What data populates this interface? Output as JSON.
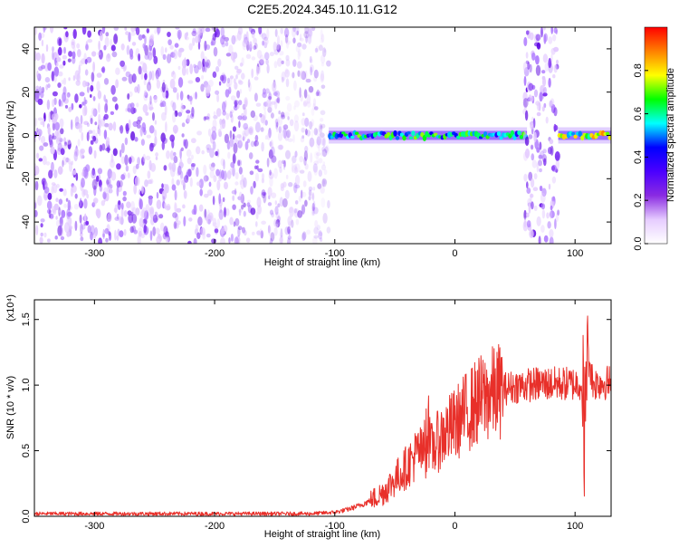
{
  "title": "C2E5.2024.345.10.11.G12",
  "chart_data": [
    {
      "type": "heatmap",
      "title": "C2E5.2024.345.10.11.G12",
      "xlabel": "Height of straight line (km)",
      "ylabel": "Frequency (Hz)",
      "xlim": [
        -350,
        130
      ],
      "ylim": [
        -50,
        50
      ],
      "xticks": [
        -300,
        -200,
        -100,
        0,
        100
      ],
      "xtick_labels": [
        "-300",
        "-200",
        "-100",
        "0",
        "100"
      ],
      "yticks": [
        -40,
        -20,
        0,
        20,
        40
      ],
      "ytick_labels": [
        "-40",
        "-20",
        "0",
        "20",
        "40"
      ],
      "colorbar": {
        "label": "Normalized spectral amplitude",
        "range": [
          0,
          1
        ],
        "ticks": [
          0.0,
          0.2,
          0.4,
          0.6,
          0.8
        ],
        "tick_labels": [
          "0.0",
          "0.2",
          "0.4",
          "0.6",
          "0.8"
        ],
        "colormap": [
          "#ffffff",
          "#e6ccff",
          "#8a2be2",
          "#4b00ff",
          "#0000ff",
          "#00ffff",
          "#00ff00",
          "#ffff00",
          "#ff8000",
          "#ff0000"
        ]
      },
      "regions": [
        {
          "x_range": [
            -350,
            -105
          ],
          "y_range": [
            -50,
            50
          ],
          "amplitude": 0.1
        },
        {
          "x_range": [
            -105,
            60
          ],
          "y_range": [
            -3,
            3
          ],
          "amplitude": 0.7
        },
        {
          "x_range": [
            58,
            86
          ],
          "y_range": [
            -50,
            50
          ],
          "amplitude": 0.12
        },
        {
          "x_range": [
            86,
            130
          ],
          "y_range": [
            -3,
            3
          ],
          "amplitude": 0.85
        }
      ],
      "grid": false
    },
    {
      "type": "line",
      "xlabel": "Height of straight line (km)",
      "ylabel": "SNR (10 * v/v)",
      "yscale_note": "(x10⁴)",
      "xlim": [
        -350,
        130
      ],
      "ylim": [
        0,
        1.65
      ],
      "xticks": [
        -300,
        -200,
        -100,
        0,
        100
      ],
      "xtick_labels": [
        "-300",
        "-200",
        "-100",
        "0",
        "100"
      ],
      "yticks": [
        0.0,
        0.5,
        1.0,
        1.5
      ],
      "ytick_labels": [
        "0.0",
        "0.5",
        "1.0",
        "1.5"
      ],
      "color": "#e8302a",
      "series": [
        {
          "x": [
            -350,
            -300,
            -250,
            -200,
            -150,
            -120,
            -100,
            -90,
            -80,
            -70,
            -60,
            -50,
            -40,
            -30,
            -25,
            -22,
            -20,
            -10,
            0,
            10,
            20,
            30,
            40,
            50,
            60,
            70,
            80,
            90,
            100,
            105,
            108,
            110,
            115,
            120,
            130
          ],
          "values": [
            0.02,
            0.02,
            0.02,
            0.02,
            0.02,
            0.02,
            0.03,
            0.05,
            0.08,
            0.12,
            0.18,
            0.28,
            0.38,
            0.5,
            0.45,
            0.6,
            0.5,
            0.62,
            0.7,
            0.8,
            0.88,
            0.93,
            0.97,
            0.99,
            1.0,
            1.01,
            1.01,
            1.01,
            1.01,
            1.02,
            0.7,
            1.3,
            1.01,
            1.02,
            1.02
          ]
        }
      ],
      "grid": false
    }
  ]
}
